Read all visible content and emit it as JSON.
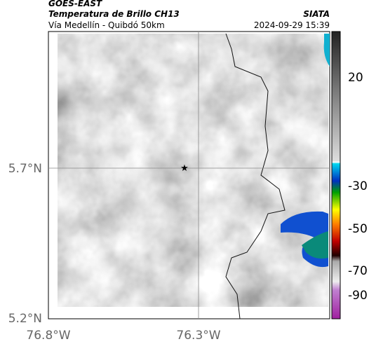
{
  "header": {
    "title": "GOES-EAST",
    "subtitle": "Temperatura de Brillo CH13",
    "source": "SIATA",
    "location": "Vía Medellín - Quibdó 50km",
    "timestamp": "2024-09-29 15:39"
  },
  "map": {
    "lat_ticks": [
      {
        "value": 5.7,
        "label": "5.7°N"
      },
      {
        "value": 5.2,
        "label": "5.2°N"
      }
    ],
    "lon_ticks": [
      {
        "value": -76.8,
        "label": "76.8°W"
      },
      {
        "value": -76.3,
        "label": "76.3°W"
      }
    ],
    "colorbar_ticks": [
      "20",
      "-30",
      "-50",
      "-70",
      "-90"
    ]
  }
}
